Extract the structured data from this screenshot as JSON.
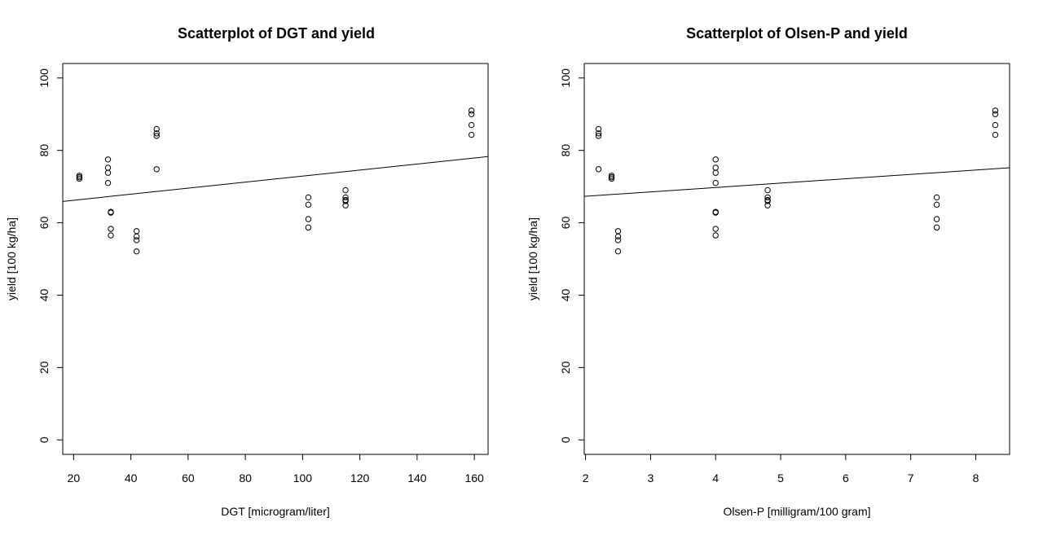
{
  "chart_data": [
    {
      "type": "scatter",
      "title": "Scatterplot of DGT and yield",
      "xlabel": "DGT [microgram/liter]",
      "ylabel": "yield [100 kg/ha]",
      "xlim": [
        16.2,
        164.8
      ],
      "ylim": [
        -4,
        104
      ],
      "xticks": [
        20,
        40,
        60,
        80,
        100,
        120,
        140,
        160
      ],
      "yticks": [
        0,
        20,
        40,
        60,
        80,
        100
      ],
      "grid": false,
      "series": [
        {
          "x": [
            22,
            22,
            22,
            32,
            32,
            32,
            32,
            33,
            33,
            33,
            33,
            42,
            42,
            42,
            42,
            49,
            49,
            49,
            49,
            102,
            102,
            102,
            102,
            115,
            115,
            115,
            115,
            115,
            159,
            159,
            159,
            159
          ],
          "y": [
            72.2,
            72.6,
            73.0,
            77.5,
            75.2,
            73.8,
            71.0,
            63.0,
            62.8,
            58.3,
            56.5,
            57.7,
            56.2,
            55.2,
            52.1,
            85.9,
            84.7,
            84.0,
            74.8,
            67.0,
            65.0,
            61.0,
            58.7,
            69.0,
            67.0,
            66.3,
            66.0,
            64.8,
            91.0,
            90.0,
            87.0,
            84.3
          ]
        }
      ],
      "regression_line": {
        "x": [
          16.2,
          164.8
        ],
        "y": [
          65.9,
          78.3
        ]
      }
    },
    {
      "type": "scatter",
      "title": "Scatterplot of Olsen-P and yield",
      "xlabel": "Olsen-P [milligram/100 gram]",
      "ylabel": "yield [100 kg/ha]",
      "xlim": [
        1.98,
        8.52
      ],
      "ylim": [
        -4,
        104
      ],
      "xticks": [
        2,
        3,
        4,
        5,
        6,
        7,
        8
      ],
      "yticks": [
        0,
        20,
        40,
        60,
        80,
        100
      ],
      "grid": false,
      "series": [
        {
          "x": [
            2.2,
            2.2,
            2.2,
            2.2,
            2.4,
            2.4,
            2.4,
            2.5,
            2.5,
            2.5,
            2.5,
            4.0,
            4.0,
            4.0,
            4.0,
            4.0,
            4.0,
            4.0,
            4.0,
            4.8,
            4.8,
            4.8,
            4.8,
            4.8,
            7.4,
            7.4,
            7.4,
            7.4,
            8.3,
            8.3,
            8.3,
            8.3
          ],
          "y": [
            85.9,
            84.7,
            84.0,
            74.8,
            73.0,
            72.6,
            72.2,
            57.7,
            56.2,
            55.2,
            52.1,
            77.5,
            75.2,
            73.8,
            71.0,
            63.0,
            62.8,
            58.3,
            56.5,
            69.0,
            67.0,
            66.3,
            66.0,
            64.8,
            67.0,
            65.0,
            61.0,
            58.7,
            91.0,
            90.0,
            87.0,
            84.3
          ]
        }
      ],
      "regression_line": {
        "x": [
          1.98,
          8.52
        ],
        "y": [
          67.3,
          75.2
        ]
      }
    }
  ]
}
